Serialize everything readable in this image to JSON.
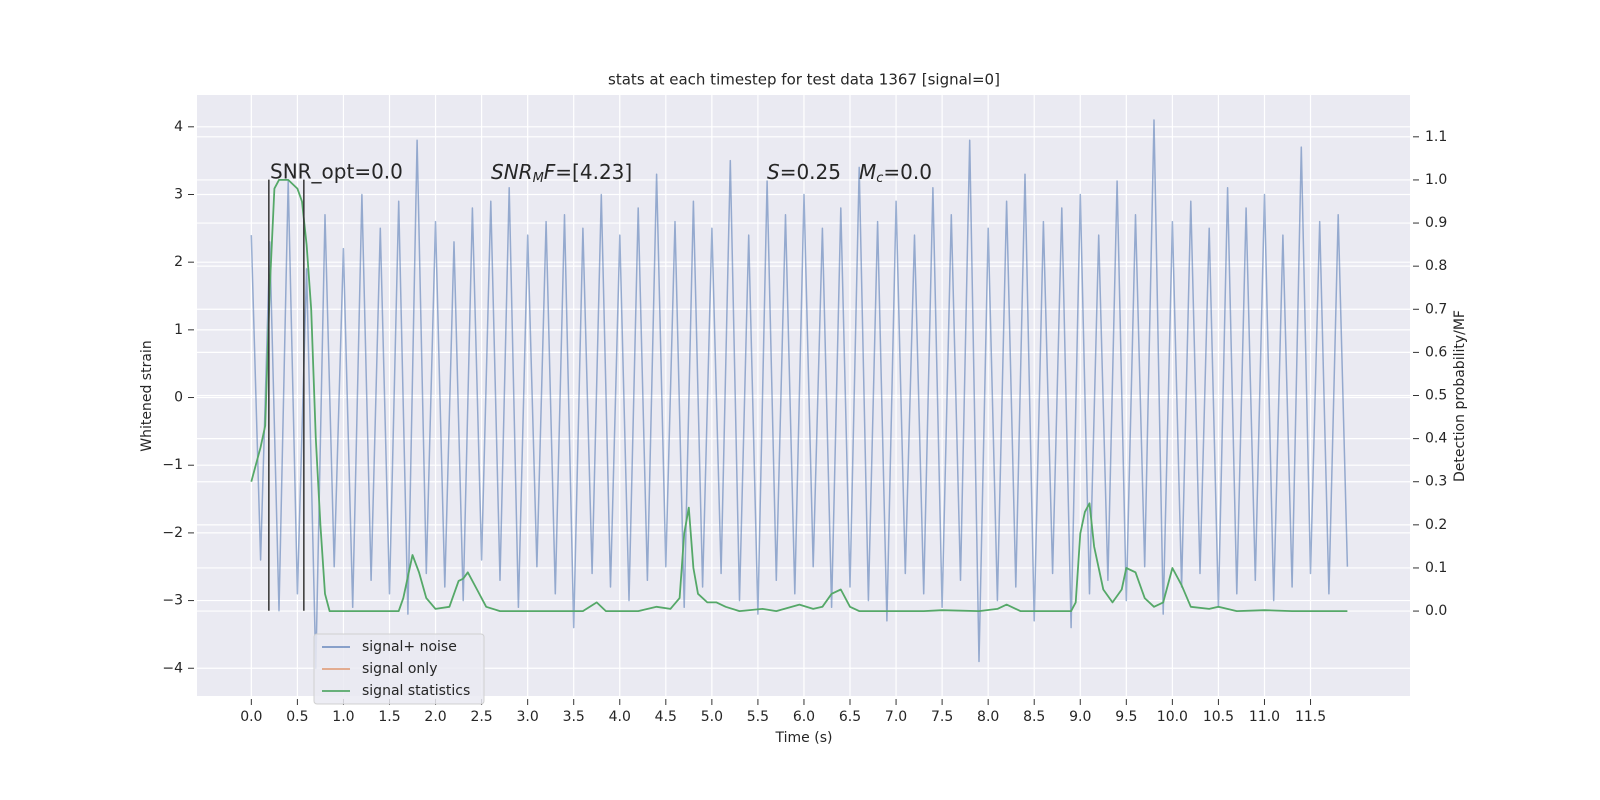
{
  "chart_data": {
    "type": "line",
    "title": "stats at each timestep for test data 1367 [signal=0]",
    "xlabel": "Time (s)",
    "ylabel": "Whitened strain",
    "y2label": "Detection probability/MF",
    "xlim": [
      -0.59,
      12.58
    ],
    "ylim": [
      -4.41,
      4.47
    ],
    "y2lim": [
      -0.197,
      1.197
    ],
    "grid": true,
    "legend": "lower left",
    "xticks": [
      {
        "value": 0,
        "label": "0.0"
      },
      0.5,
      {
        "value": 1,
        "label": "1.0"
      },
      1.5,
      {
        "value": 2,
        "label": "2.0"
      },
      2.5,
      {
        "value": 3,
        "label": "3.0"
      },
      3.5,
      {
        "value": 4,
        "label": "4.0"
      },
      4.5,
      {
        "value": 5,
        "label": "5.0"
      },
      5.5,
      {
        "value": 6,
        "label": "6.0"
      },
      6.5,
      {
        "value": 7,
        "label": "7.0"
      },
      7.5,
      {
        "value": 8,
        "label": "8.0"
      },
      8.5,
      {
        "value": 9,
        "label": "9.0"
      },
      9.5,
      {
        "value": 10,
        "label": "10.0"
      },
      10.5,
      {
        "value": 11,
        "label": "11.0"
      },
      11.5
    ],
    "yticks": [
      {
        "value": -4,
        "label": "−4"
      },
      {
        "value": -3,
        "label": "−3"
      },
      {
        "value": -2,
        "label": "−2"
      },
      {
        "value": -1,
        "label": "−1"
      },
      0,
      1,
      2,
      3,
      4
    ],
    "y2ticks": [
      {
        "value": 0,
        "label": "0.0"
      },
      0.1,
      0.2,
      0.3,
      0.4,
      0.5,
      0.6,
      0.7,
      0.8,
      0.9,
      {
        "value": 1,
        "label": "1.0"
      },
      1.1
    ],
    "annotations": [
      {
        "text": "SNR_opt=0.0",
        "math": false
      },
      {
        "text": "SNR_MF=[4.23]",
        "math": true
      },
      {
        "text": "S=0.25",
        "math": true
      },
      {
        "text": "M_c=0.0",
        "math": true
      }
    ],
    "vlines": {
      "x": [
        0.19,
        0.57
      ],
      "ymin": -3.15,
      "ymax": 3.22,
      "color": "#333333"
    },
    "series": [
      {
        "name": "signal+ noise",
        "color": "#4c72b0",
        "axis": "y",
        "x": [
          0.0,
          0.1,
          0.2,
          0.3,
          0.4,
          0.5,
          0.6,
          0.7,
          0.8,
          0.9,
          1.0,
          1.1,
          1.2,
          1.3,
          1.4,
          1.5,
          1.6,
          1.7,
          1.8,
          1.9,
          2.0,
          2.1,
          2.2,
          2.3,
          2.4,
          2.5,
          2.6,
          2.7,
          2.8,
          2.9,
          3.0,
          3.1,
          3.2,
          3.3,
          3.4,
          3.5,
          3.6,
          3.7,
          3.8,
          3.9,
          4.0,
          4.1,
          4.2,
          4.3,
          4.4,
          4.5,
          4.6,
          4.7,
          4.8,
          4.9,
          5.0,
          5.1,
          5.2,
          5.3,
          5.4,
          5.5,
          5.6,
          5.7,
          5.8,
          5.9,
          6.0,
          6.1,
          6.2,
          6.3,
          6.4,
          6.5,
          6.6,
          6.7,
          6.8,
          6.9,
          7.0,
          7.1,
          7.2,
          7.3,
          7.4,
          7.5,
          7.6,
          7.7,
          7.8,
          7.9,
          8.0,
          8.1,
          8.2,
          8.3,
          8.4,
          8.5,
          8.6,
          8.7,
          8.8,
          8.9,
          9.0,
          9.1,
          9.2,
          9.3,
          9.4,
          9.5,
          9.6,
          9.7,
          9.8,
          9.9,
          10.0,
          10.1,
          10.2,
          10.3,
          10.4,
          10.5,
          10.6,
          10.7,
          10.8,
          10.9,
          11.0,
          11.1,
          11.2,
          11.3,
          11.4,
          11.5,
          11.6,
          11.7,
          11.8,
          11.9
        ],
        "values": [
          2.4,
          -2.4,
          2.3,
          -3.15,
          3.2,
          -2.9,
          1.9,
          -4.0,
          2.7,
          -2.5,
          2.2,
          -3.1,
          3.0,
          -2.7,
          2.5,
          -2.9,
          2.9,
          -3.2,
          3.8,
          -2.6,
          2.6,
          -2.8,
          2.3,
          -3.0,
          2.8,
          -2.4,
          2.9,
          -2.7,
          3.1,
          -3.1,
          2.4,
          -2.5,
          2.6,
          -2.9,
          2.7,
          -3.4,
          2.5,
          -2.6,
          3.0,
          -2.8,
          2.4,
          -3.0,
          2.8,
          -2.7,
          3.3,
          -2.5,
          2.6,
          -3.1,
          2.9,
          -2.8,
          2.5,
          -2.6,
          3.5,
          -3.0,
          2.4,
          -3.2,
          3.2,
          -2.7,
          2.7,
          -2.9,
          3.0,
          -2.5,
          2.5,
          -3.1,
          2.8,
          -2.8,
          3.4,
          -3.0,
          2.6,
          -3.3,
          2.9,
          -2.6,
          2.4,
          -2.9,
          3.1,
          -3.1,
          2.7,
          -2.7,
          3.8,
          -3.9,
          2.5,
          -3.0,
          2.9,
          -2.8,
          3.3,
          -3.3,
          2.6,
          -2.6,
          2.8,
          -3.4,
          3.0,
          -2.9,
          2.4,
          -2.7,
          3.2,
          -3.0,
          2.7,
          -2.5,
          4.1,
          -3.2,
          2.6,
          -2.8,
          2.9,
          -2.6,
          2.5,
          -3.1,
          3.1,
          -2.9,
          2.8,
          -2.7,
          3.0,
          -3.0,
          2.4,
          -2.8,
          3.7,
          -2.6,
          2.6,
          -2.9,
          2.7,
          -2.5
        ]
      },
      {
        "name": "signal only",
        "color": "#dd8452",
        "axis": "y",
        "x": [],
        "values": []
      },
      {
        "name": "signal statistics",
        "color": "#55a868",
        "axis": "y2",
        "x": [
          0.0,
          0.1,
          0.15,
          0.2,
          0.25,
          0.3,
          0.4,
          0.5,
          0.55,
          0.6,
          0.65,
          0.7,
          0.75,
          0.8,
          0.85,
          1.0,
          1.6,
          1.65,
          1.75,
          1.82,
          1.9,
          2.0,
          2.15,
          2.25,
          2.3,
          2.35,
          2.45,
          2.55,
          2.7,
          3.6,
          3.75,
          3.85,
          4.2,
          4.4,
          4.55,
          4.65,
          4.7,
          4.75,
          4.8,
          4.85,
          4.95,
          5.05,
          5.15,
          5.3,
          5.55,
          5.7,
          5.95,
          6.1,
          6.2,
          6.3,
          6.4,
          6.5,
          6.6,
          7.3,
          7.5,
          7.9,
          8.1,
          8.2,
          8.35,
          8.9,
          8.95,
          9.0,
          9.05,
          9.1,
          9.15,
          9.25,
          9.35,
          9.45,
          9.5,
          9.6,
          9.7,
          9.8,
          9.9,
          10.0,
          10.1,
          10.2,
          10.4,
          10.5,
          10.7,
          11.0,
          11.3,
          11.9
        ],
        "values": [
          0.3,
          0.38,
          0.43,
          0.75,
          0.98,
          1.0,
          1.0,
          0.98,
          0.95,
          0.85,
          0.7,
          0.4,
          0.2,
          0.04,
          0.0,
          0.0,
          0.0,
          0.03,
          0.13,
          0.09,
          0.03,
          0.005,
          0.01,
          0.07,
          0.075,
          0.09,
          0.05,
          0.01,
          0.0,
          0.0,
          0.02,
          0.0,
          0.0,
          0.01,
          0.005,
          0.03,
          0.18,
          0.24,
          0.1,
          0.04,
          0.02,
          0.02,
          0.01,
          0.0,
          0.005,
          0.0,
          0.015,
          0.005,
          0.01,
          0.04,
          0.05,
          0.01,
          0.0,
          0.0,
          0.002,
          0.0,
          0.005,
          0.015,
          0.0,
          0.0,
          0.02,
          0.18,
          0.23,
          0.25,
          0.15,
          0.05,
          0.02,
          0.05,
          0.1,
          0.09,
          0.03,
          0.01,
          0.02,
          0.1,
          0.06,
          0.01,
          0.005,
          0.01,
          0.0,
          0.002,
          0.0,
          0.0
        ]
      }
    ]
  }
}
